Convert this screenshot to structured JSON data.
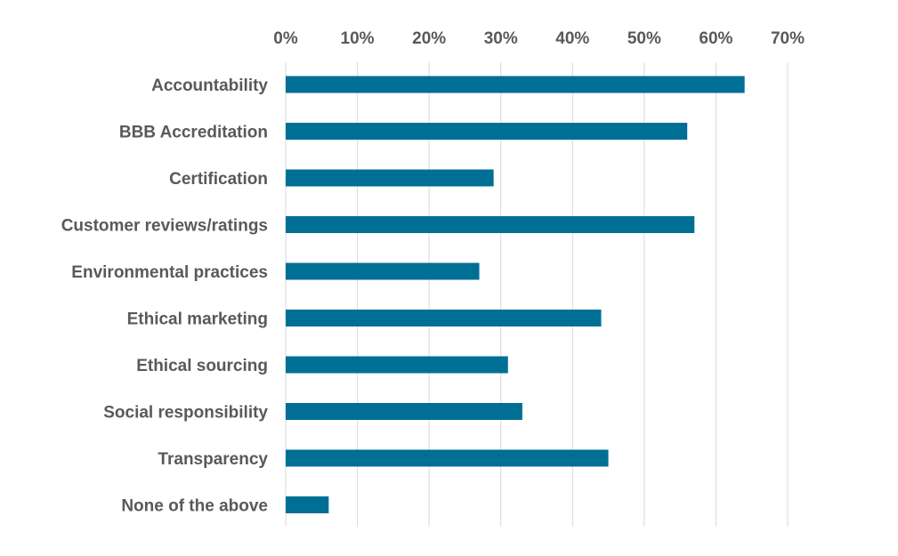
{
  "chart_data": {
    "type": "bar",
    "orientation": "horizontal",
    "title": "",
    "xlabel": "",
    "ylabel": "",
    "categories": [
      "Accountability",
      "BBB Accreditation",
      "Certification",
      "Customer reviews/ratings",
      "Environmental practices",
      "Ethical marketing",
      "Ethical sourcing",
      "Social responsibility",
      "Transparency",
      "None of the above"
    ],
    "values": [
      64,
      56,
      29,
      57,
      27,
      44,
      31,
      33,
      45,
      6
    ],
    "xlim": [
      0,
      70
    ],
    "ticks": [
      0,
      10,
      20,
      30,
      40,
      50,
      60,
      70
    ],
    "tick_labels": [
      "0%",
      "10%",
      "20%",
      "30%",
      "40%",
      "50%",
      "60%",
      "70%"
    ],
    "grid": true,
    "axis_position": "top",
    "bar_color": "#006f95"
  }
}
